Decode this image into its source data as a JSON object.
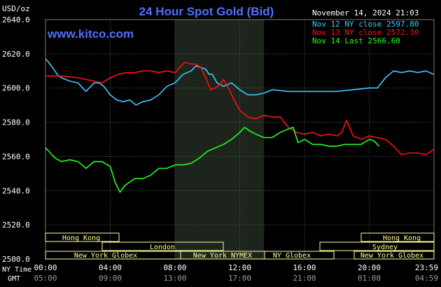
{
  "header": {
    "unit_label": "USD/oz",
    "title": "24 Hour Spot Gold (Bid)",
    "timestamp": "November 14, 2024 21:03",
    "watermark": "www.kitco.com"
  },
  "legend": [
    {
      "label": "Nov 12 NY close 2597.80",
      "color": "#40c8ff"
    },
    {
      "label": "Nov 13 NY close 2572.30",
      "color": "#ff1010"
    },
    {
      "label": "Nov 14 Last 2566.60",
      "color": "#20ff20"
    }
  ],
  "colors": {
    "background": "#000000",
    "grid": "#5a5a5a",
    "session_shade": "#1c241c",
    "market_bar": "#ffff99",
    "title": "#5070ff",
    "axis_text": "#ffffff",
    "gmt_text": "#9a9a9a"
  },
  "y_ticks": [
    "2640.0",
    "2620.0",
    "2600.0",
    "2580.0",
    "2560.0",
    "2540.0",
    "2520.0",
    "2500.0"
  ],
  "x_ticks_ny": [
    "00:00",
    "04:00",
    "08:00",
    "12:00",
    "16:00",
    "20:00",
    "23:59"
  ],
  "x_ticks_gmt": [
    "05:00",
    "09:00",
    "13:00",
    "17:00",
    "21:00",
    "01:00",
    "04:59"
  ],
  "row_labels": {
    "ny": "NY Time",
    "gmt": "GMT"
  },
  "markets": {
    "hong_kong_1": "Hong Kong",
    "hong_kong_2": "Hong Kong",
    "london": "London",
    "sydney": "Sydney",
    "new_york_globex_1": "New York Globex",
    "new_york_nymex": "New York NYMEX",
    "ny_globex": "NY Globex",
    "new_york_globex_2": "New York Globex"
  },
  "chart_data": {
    "type": "line",
    "title": "24 Hour Spot Gold (Bid)",
    "ylabel": "USD/oz",
    "xlabel": "",
    "ylim": [
      2500,
      2640
    ],
    "xlim": [
      0,
      24
    ],
    "x_unit": "hours NY time",
    "shaded_region": [
      8.0,
      13.5
    ],
    "grid": true,
    "legend_position": "top-right",
    "series": [
      {
        "name": "Nov 12 NY close 2597.80",
        "color": "#40c8ff",
        "x": [
          0,
          0.2,
          0.5,
          0.8,
          1.0,
          1.5,
          2.0,
          2.5,
          3.0,
          3.3,
          3.6,
          4.0,
          4.4,
          4.8,
          5.2,
          5.6,
          6.0,
          6.5,
          7.0,
          7.5,
          8.0,
          8.5,
          9.0,
          9.3,
          9.6,
          9.9,
          10.1,
          10.3,
          10.6,
          11.0,
          11.5,
          12.0,
          12.5,
          13.0,
          13.5,
          14.0,
          15.0,
          16.0,
          17.0,
          18.0,
          19.0,
          20.0,
          20.5,
          21.0,
          21.5,
          22.0,
          22.5,
          23.0,
          23.5,
          23.98
        ],
        "values": [
          2617,
          2615,
          2611,
          2607,
          2606,
          2604,
          2603,
          2598,
          2603,
          2603,
          2601,
          2596,
          2593,
          2592,
          2593,
          2590,
          2592,
          2593,
          2596,
          2601,
          2603,
          2608,
          2610,
          2613,
          2612,
          2611,
          2608,
          2608,
          2603,
          2601,
          2603,
          2599,
          2596,
          2596,
          2597,
          2599,
          2598,
          2598,
          2598,
          2598,
          2599,
          2600,
          2600,
          2606,
          2610,
          2609,
          2610,
          2609,
          2610,
          2608
        ]
      },
      {
        "name": "Nov 13 NY close 2572.30",
        "color": "#ff1010",
        "x": [
          0,
          1.0,
          2.0,
          3.0,
          3.5,
          4.0,
          4.5,
          5.0,
          5.5,
          6.0,
          6.5,
          7.0,
          7.5,
          8.0,
          8.3,
          8.6,
          9.0,
          9.3,
          9.6,
          9.9,
          10.2,
          10.5,
          10.8,
          11.0,
          11.3,
          11.6,
          12.0,
          12.5,
          13.0,
          13.5,
          14.0,
          14.5,
          15.0,
          15.5,
          16.0,
          16.5,
          17.0,
          17.5,
          18.0,
          18.3,
          18.6,
          19.0,
          19.5,
          20.0,
          20.5,
          21.0,
          21.5,
          22.0,
          22.5,
          23.0,
          23.5,
          23.98
        ],
        "values": [
          2607,
          2607,
          2606,
          2604,
          2603,
          2606,
          2608,
          2609,
          2609,
          2610,
          2610,
          2609,
          2610,
          2609,
          2612,
          2615,
          2614,
          2614,
          2612,
          2606,
          2599,
          2600,
          2602,
          2605,
          2600,
          2594,
          2587,
          2583,
          2582,
          2584,
          2583,
          2583,
          2577,
          2574,
          2573,
          2574,
          2572,
          2573,
          2572,
          2574,
          2581,
          2572,
          2570,
          2572,
          2571,
          2570,
          2566,
          2561,
          2562,
          2562,
          2561,
          2564
        ]
      },
      {
        "name": "Nov 14 Last 2566.60",
        "color": "#20ff20",
        "x": [
          0,
          0.3,
          0.6,
          1.0,
          1.5,
          2.0,
          2.5,
          3.0,
          3.5,
          4.0,
          4.3,
          4.6,
          4.9,
          5.2,
          5.5,
          6.0,
          6.5,
          7.0,
          7.5,
          8.0,
          8.5,
          9.0,
          9.5,
          10.0,
          10.5,
          11.0,
          11.5,
          12.0,
          12.3,
          12.6,
          13.0,
          13.5,
          14.0,
          14.5,
          15.0,
          15.3,
          15.6,
          16.0,
          16.5,
          17.0,
          17.5,
          18.0,
          18.5,
          19.0,
          19.5,
          20.0,
          20.3,
          20.6
        ],
        "values": [
          2565,
          2562,
          2559,
          2557,
          2558,
          2557,
          2553,
          2557,
          2557,
          2554,
          2545,
          2539,
          2543,
          2545,
          2547,
          2547,
          2549,
          2553,
          2553,
          2555,
          2555,
          2556,
          2559,
          2563,
          2565,
          2567,
          2570,
          2574,
          2577,
          2575,
          2573,
          2571,
          2571,
          2574,
          2576,
          2577,
          2568,
          2570,
          2567,
          2567,
          2566,
          2566,
          2567,
          2567,
          2567,
          2570,
          2569,
          2566
        ]
      }
    ]
  }
}
